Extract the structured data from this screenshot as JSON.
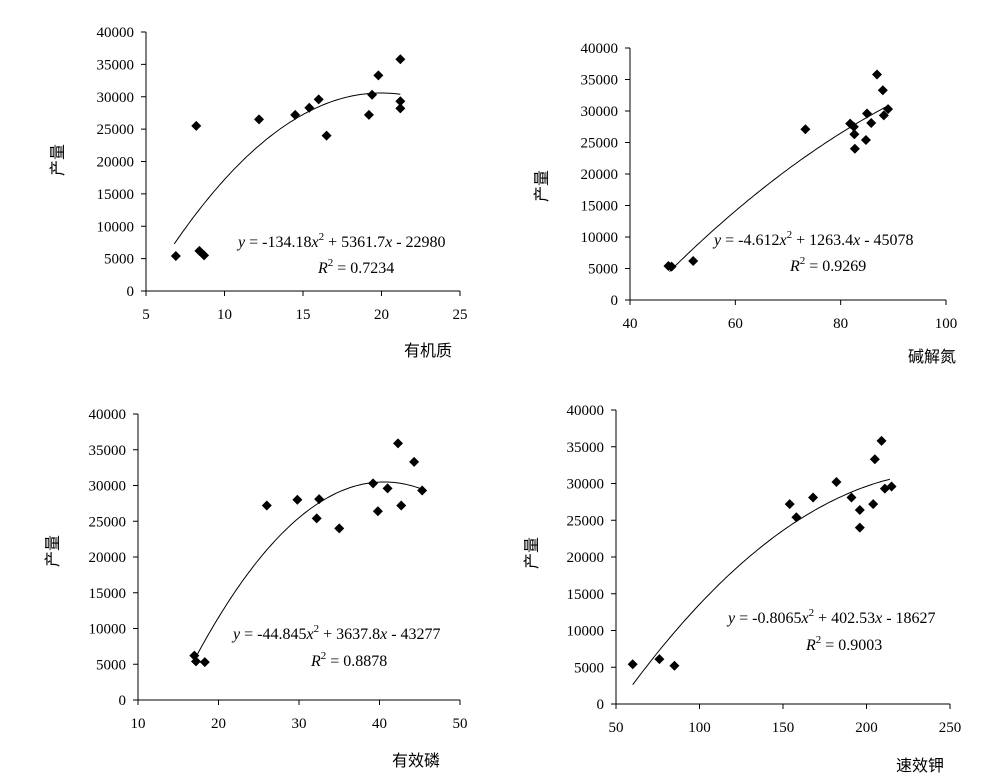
{
  "chart_data": [
    {
      "type": "scatter",
      "xlabel": "有机质",
      "ylabel": "产量",
      "xlim": [
        5,
        25
      ],
      "ylim": [
        0,
        40000
      ],
      "xticks": [
        5,
        10,
        15,
        20,
        25
      ],
      "yticks": [
        0,
        5000,
        10000,
        15000,
        20000,
        25000,
        30000,
        35000,
        40000
      ],
      "fit": {
        "a": -134.18,
        "b": 5361.7,
        "c": -22980,
        "xrange": [
          6.8,
          21.2
        ]
      },
      "equation": {
        "y": "y",
        "eq_text": " = -134.18",
        "x2": "x",
        "exp": "2",
        "mid": " + 5361.7",
        "x1": "x",
        "tail": " - 22980"
      },
      "r2": {
        "r": "R",
        "exp": "2",
        "value": " = 0.7234"
      },
      "points": [
        {
          "x": 6.9,
          "y": 5400
        },
        {
          "x": 8.2,
          "y": 25500
        },
        {
          "x": 8.4,
          "y": 6200
        },
        {
          "x": 8.7,
          "y": 5500
        },
        {
          "x": 12.2,
          "y": 26500
        },
        {
          "x": 14.5,
          "y": 27200
        },
        {
          "x": 15.4,
          "y": 28300
        },
        {
          "x": 16.0,
          "y": 29600
        },
        {
          "x": 16.5,
          "y": 24000
        },
        {
          "x": 19.2,
          "y": 27200
        },
        {
          "x": 19.4,
          "y": 30300
        },
        {
          "x": 19.8,
          "y": 33300
        },
        {
          "x": 21.2,
          "y": 35800
        },
        {
          "x": 21.2,
          "y": 29300
        },
        {
          "x": 21.2,
          "y": 28200
        }
      ]
    },
    {
      "type": "scatter",
      "xlabel": "碱解氮",
      "ylabel": "产量",
      "xlim": [
        40,
        100
      ],
      "ylim": [
        0,
        40000
      ],
      "xticks": [
        40,
        60,
        80,
        100
      ],
      "yticks": [
        0,
        5000,
        10000,
        15000,
        20000,
        25000,
        30000,
        35000,
        40000
      ],
      "fit": {
        "a": -4.612,
        "b": 1263.4,
        "c": -45078,
        "xrange": [
          47.5,
          89
        ]
      },
      "equation": {
        "y": "y",
        "eq_text": " = -4.612",
        "x2": "x",
        "exp": "2",
        "mid": " + 1263.4",
        "x1": "x",
        "tail": " - 45078"
      },
      "r2": {
        "r": "R",
        "exp": "2",
        "value": " = 0.9269"
      },
      "points": [
        {
          "x": 47.3,
          "y": 5400
        },
        {
          "x": 47.9,
          "y": 5300
        },
        {
          "x": 52.0,
          "y": 6200
        },
        {
          "x": 73.3,
          "y": 27100
        },
        {
          "x": 81.8,
          "y": 28000
        },
        {
          "x": 82.5,
          "y": 27500
        },
        {
          "x": 82.6,
          "y": 26300
        },
        {
          "x": 82.7,
          "y": 24000
        },
        {
          "x": 84.8,
          "y": 25400
        },
        {
          "x": 85.0,
          "y": 29600
        },
        {
          "x": 85.8,
          "y": 28100
        },
        {
          "x": 86.9,
          "y": 35800
        },
        {
          "x": 88.0,
          "y": 33300
        },
        {
          "x": 88.2,
          "y": 29300
        },
        {
          "x": 89.0,
          "y": 30300
        }
      ]
    },
    {
      "type": "scatter",
      "xlabel": "有效磷",
      "ylabel": "产量",
      "xlim": [
        10,
        50
      ],
      "ylim": [
        0,
        40000
      ],
      "xticks": [
        10,
        20,
        30,
        40,
        50
      ],
      "yticks": [
        0,
        5000,
        10000,
        15000,
        20000,
        25000,
        30000,
        35000,
        40000
      ],
      "fit": {
        "a": -44.845,
        "b": 3637.8,
        "c": -43277,
        "xrange": [
          16.9,
          45.3
        ]
      },
      "equation": {
        "y": "y",
        "eq_text": " = -44.845",
        "x2": "x",
        "exp": "2",
        "mid": " + 3637.8",
        "x1": "x",
        "tail": " - 43277"
      },
      "r2": {
        "r": "R",
        "exp": "2",
        "value": " = 0.8878"
      },
      "points": [
        {
          "x": 17.0,
          "y": 6200
        },
        {
          "x": 17.2,
          "y": 5400
        },
        {
          "x": 18.3,
          "y": 5300
        },
        {
          "x": 26.0,
          "y": 27200
        },
        {
          "x": 29.8,
          "y": 28000
        },
        {
          "x": 32.2,
          "y": 25400
        },
        {
          "x": 32.5,
          "y": 28100
        },
        {
          "x": 35.0,
          "y": 24000
        },
        {
          "x": 39.2,
          "y": 30300
        },
        {
          "x": 39.8,
          "y": 26400
        },
        {
          "x": 41.0,
          "y": 29600
        },
        {
          "x": 42.3,
          "y": 35900
        },
        {
          "x": 42.7,
          "y": 27200
        },
        {
          "x": 44.3,
          "y": 33300
        },
        {
          "x": 45.3,
          "y": 29300
        }
      ]
    },
    {
      "type": "scatter",
      "xlabel": "速效钾",
      "ylabel": "产量",
      "xlim": [
        50,
        250
      ],
      "ylim": [
        0,
        40000
      ],
      "xticks": [
        50,
        100,
        150,
        200,
        250
      ],
      "yticks": [
        0,
        5000,
        10000,
        15000,
        20000,
        25000,
        30000,
        35000,
        40000
      ],
      "fit": {
        "a": -0.8065,
        "b": 402.53,
        "c": -18627,
        "xrange": [
          60,
          214
        ]
      },
      "equation": {
        "y": "y",
        "eq_text": " = -0.8065",
        "x2": "x",
        "exp": "2",
        "mid": " + 402.53",
        "x1": "x",
        "tail": " - 18627"
      },
      "r2": {
        "r": "R",
        "exp": "2",
        "value": " = 0.9003"
      },
      "points": [
        {
          "x": 60,
          "y": 5400
        },
        {
          "x": 76,
          "y": 6100
        },
        {
          "x": 85,
          "y": 5200
        },
        {
          "x": 154,
          "y": 27200
        },
        {
          "x": 158,
          "y": 25400
        },
        {
          "x": 168,
          "y": 28100
        },
        {
          "x": 182,
          "y": 30200
        },
        {
          "x": 191,
          "y": 28100
        },
        {
          "x": 196,
          "y": 24000
        },
        {
          "x": 196,
          "y": 26400
        },
        {
          "x": 204,
          "y": 27200
        },
        {
          "x": 205,
          "y": 33300
        },
        {
          "x": 209,
          "y": 35800
        },
        {
          "x": 211,
          "y": 29300
        },
        {
          "x": 215,
          "y": 29600
        }
      ]
    }
  ]
}
